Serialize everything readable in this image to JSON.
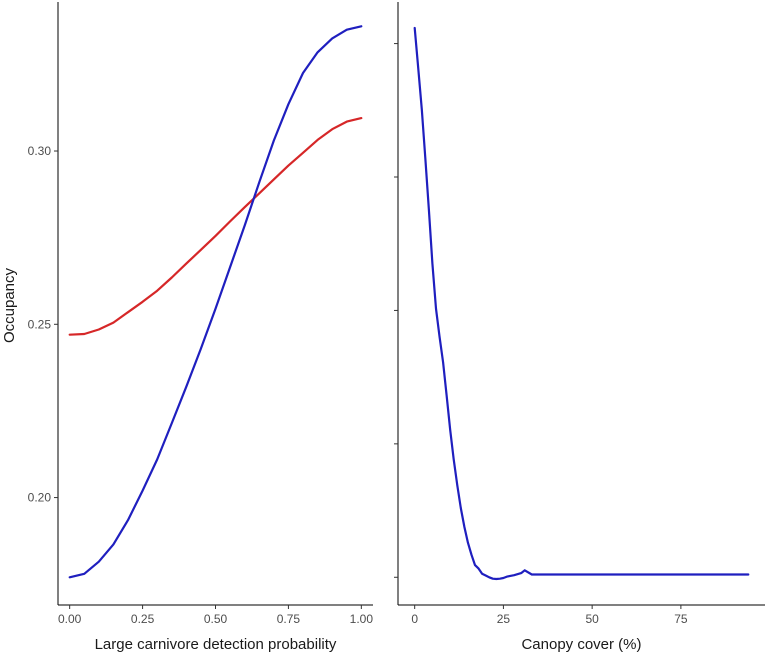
{
  "chart_data": [
    {
      "type": "line",
      "xlabel": "Large carnivore detection probability",
      "ylabel": "Occupancy",
      "xlim": [
        -0.04,
        1.04
      ],
      "ylim": [
        0.169,
        0.343
      ],
      "x_ticks": [
        0.0,
        0.25,
        0.5,
        0.75,
        1.0
      ],
      "x_tick_labels": [
        "0.00",
        "0.25",
        "0.50",
        "0.75",
        "1.00"
      ],
      "y_ticks": [
        0.2,
        0.25,
        0.3
      ],
      "y_tick_labels": [
        "0.20",
        "0.25",
        "0.30"
      ],
      "grid": false,
      "legend": "none",
      "series": [
        {
          "color": "#d62728",
          "x": [
            0.0,
            0.05,
            0.1,
            0.15,
            0.2,
            0.25,
            0.3,
            0.35,
            0.4,
            0.45,
            0.5,
            0.55,
            0.6,
            0.65,
            0.7,
            0.75,
            0.8,
            0.85,
            0.9,
            0.95,
            1.0
          ],
          "y": [
            0.247,
            0.2472,
            0.2485,
            0.2505,
            0.2535,
            0.2565,
            0.2597,
            0.2635,
            0.2675,
            0.2715,
            0.2755,
            0.2797,
            0.2838,
            0.2878,
            0.2918,
            0.2958,
            0.2995,
            0.3032,
            0.3063,
            0.3085,
            0.3095
          ]
        },
        {
          "color": "#1f1fbf",
          "x": [
            0.0,
            0.05,
            0.1,
            0.15,
            0.2,
            0.25,
            0.3,
            0.35,
            0.4,
            0.45,
            0.5,
            0.55,
            0.6,
            0.65,
            0.7,
            0.75,
            0.8,
            0.85,
            0.9,
            0.95,
            1.0
          ],
          "y": [
            0.177,
            0.178,
            0.1815,
            0.1865,
            0.1935,
            0.202,
            0.211,
            0.2215,
            0.232,
            0.243,
            0.2545,
            0.2665,
            0.2785,
            0.291,
            0.303,
            0.3135,
            0.3225,
            0.3285,
            0.3325,
            0.335,
            0.336
          ]
        }
      ]
    },
    {
      "type": "line",
      "xlabel": "Canopy cover (%)",
      "ylabel": "",
      "xlim": [
        -4.7,
        98.7
      ],
      "ylim": [
        0.169,
        0.343
      ],
      "x_ticks": [
        0,
        25,
        50,
        75
      ],
      "x_tick_labels": [
        "0",
        "25",
        "50",
        "75"
      ],
      "y_ticks": [
        0.177,
        0.2155,
        0.254,
        0.2925,
        0.331
      ],
      "y_tick_labels": [],
      "grid": false,
      "legend": "none",
      "series": [
        {
          "color": "#1f1fbf",
          "x": [
            0,
            1,
            2,
            3,
            4,
            5,
            6,
            7,
            8,
            9,
            10,
            11,
            12,
            13,
            14,
            15,
            16,
            17,
            18,
            19,
            20,
            21,
            22,
            23,
            24,
            25,
            26,
            28,
            30,
            31,
            33,
            40,
            50,
            60,
            70,
            80,
            90,
            94
          ],
          "y": [
            0.3355,
            0.324,
            0.312,
            0.298,
            0.283,
            0.2675,
            0.2545,
            0.2465,
            0.239,
            0.2295,
            0.2195,
            0.211,
            0.2035,
            0.197,
            0.1915,
            0.187,
            0.1835,
            0.1805,
            0.1795,
            0.178,
            0.1775,
            0.177,
            0.1766,
            0.1765,
            0.1766,
            0.1768,
            0.1772,
            0.1776,
            0.1782,
            0.179,
            0.1778,
            0.1778,
            0.1778,
            0.1778,
            0.1778,
            0.1778,
            0.1778,
            0.1778
          ]
        }
      ]
    }
  ]
}
